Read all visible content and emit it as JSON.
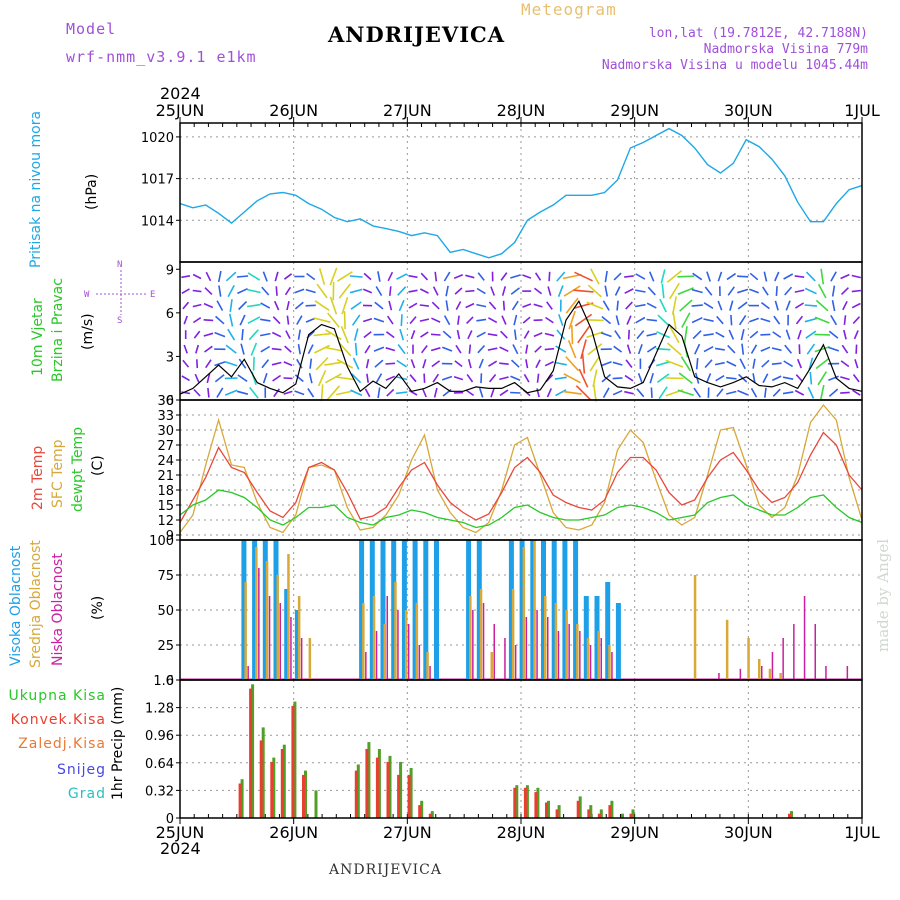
{
  "header": {
    "model_label": "Model",
    "model_name": "wrf-nmm_v3.9.1 e1km",
    "station": "ANDRIJEVICA",
    "meteogram": "Meteogram",
    "lonlat": "lon,lat (19.7812E, 42.7188N)",
    "elevation": "Nadmorska Visina 779m",
    "model_elevation": "Nadmorska Visina u modelu 1045.44m",
    "year": "2024",
    "bottom_station": "ANDRIJEVICA",
    "credit": "made by Angel"
  },
  "colors": {
    "pressure": "#1ea8e6",
    "temp2m": "#e8483c",
    "sfc": "#d8a838",
    "dewpt": "#28c828",
    "high_cloud": "#1ea0e8",
    "mid_cloud": "#d8a838",
    "low_cloud": "#c820a0",
    "total_precip": "#50a028",
    "conv_precip": "#e84030",
    "wind_speed": "#000000",
    "gust": "#e83030"
  },
  "panel_labels": {
    "pressure": "Pritisak na nivou mora",
    "pressure_unit": "(hPa)",
    "wind1": "10m Vjetar",
    "wind2": "Brzina i Pravac",
    "wind_unit": "(m/s)",
    "compass_n": "N",
    "compass_s": "S",
    "compass_w": "W",
    "compass_e": "E",
    "t2m": "2m Temp",
    "tsfc": "SFC Temp",
    "tdew": "dewpt Temp",
    "temp_unit": "(C)",
    "cloud_high": "Visoka Oblacnost",
    "cloud_mid": "Srednja Oblacnost",
    "cloud_low": "Niska Oblacnost",
    "cloud_unit": "(%)",
    "precip_total": "Ukupna Kisa",
    "precip_conv": "Konvek.Kisa",
    "precip_frz": "Zaledj.Kisa",
    "precip_snow": "Snijeg",
    "precip_grad": "Grad",
    "precip_unit": "1hr Precip (mm)"
  },
  "chart_data": [
    {
      "type": "line",
      "panel": "pressure",
      "x_ticks": [
        "25JUN",
        "26JUN",
        "27JUN",
        "28JUN",
        "29JUN",
        "30JUN",
        "1JUL"
      ],
      "ylim": [
        1011,
        1021
      ],
      "y_ticks": [
        "1014",
        "1017",
        "1020"
      ],
      "series": [
        {
          "values": [
            1015.2,
            1014.9,
            1015.1,
            1014.5,
            1013.8,
            1014.6,
            1015.4,
            1015.9,
            1016.0,
            1015.8,
            1015.2,
            1014.8,
            1014.2,
            1013.9,
            1014.1,
            1013.6,
            1013.4,
            1013.2,
            1012.9,
            1013.1,
            1012.9,
            1011.7,
            1011.9,
            1011.6,
            1011.3,
            1011.6,
            1012.4,
            1014.0,
            1014.6,
            1015.1,
            1015.8,
            1015.8,
            1015.8,
            1016.0,
            1016.9,
            1019.2,
            1019.6,
            1020.1,
            1020.6,
            1020.1,
            1019.2,
            1018.0,
            1017.4,
            1018.1,
            1019.8,
            1019.3,
            1018.4,
            1017.2,
            1015.3,
            1013.9,
            1013.9,
            1015.2,
            1016.2,
            1016.5
          ]
        }
      ]
    },
    {
      "type": "line",
      "panel": "wind",
      "ylim": [
        0,
        9.5
      ],
      "y_ticks": [
        "0",
        "3",
        "6",
        "9"
      ],
      "series": [
        {
          "values": [
            0.4,
            0.8,
            1.6,
            2.4,
            1.6,
            2.8,
            1.2,
            0.8,
            0.5,
            1.1,
            4.5,
            5.2,
            4.9,
            2.3,
            0.6,
            1.3,
            0.8,
            1.8,
            0.6,
            0.8,
            1.2,
            0.6,
            0.6,
            0.9,
            0.8,
            0.8,
            1.2,
            0.5,
            0.7,
            2.0,
            5.5,
            6.8,
            4.8,
            1.6,
            0.9,
            0.8,
            1.2,
            3.2,
            5.2,
            4.4,
            1.6,
            1.2,
            0.9,
            1.2,
            1.6,
            1.0,
            0.9,
            1.2,
            0.8,
            2.2,
            3.8,
            1.5,
            0.8,
            0.6
          ]
        }
      ]
    },
    {
      "type": "line",
      "panel": "temperature",
      "ylim": [
        8,
        36
      ],
      "y_ticks": [
        "9",
        "12",
        "15",
        "18",
        "21",
        "24",
        "27",
        "30",
        "33",
        "36"
      ],
      "series": [
        {
          "values": [
            11.5,
            16.0,
            20.5,
            26.5,
            22.5,
            21.5,
            17.5,
            13.8,
            12.5,
            15.5,
            22.5,
            23.5,
            22.0,
            17.5,
            12.2,
            12.8,
            14.5,
            18.5,
            22.0,
            23.5,
            19.0,
            15.5,
            13.5,
            12.0,
            13.2,
            17.5,
            22.5,
            24.5,
            21.5,
            17.0,
            15.5,
            14.5,
            14.0,
            16.0,
            21.5,
            24.5,
            24.5,
            22.0,
            17.5,
            15.0,
            16.0,
            20.5,
            24.0,
            25.5,
            22.0,
            18.0,
            15.5,
            16.5,
            19.5,
            25.0,
            29.5,
            27.0,
            21.0,
            18.0
          ]
        },
        {
          "values": [
            9.5,
            13.0,
            23.0,
            32.0,
            23.0,
            22.5,
            15.5,
            10.5,
            9.5,
            13.0,
            22.5,
            23.0,
            22.0,
            14.5,
            10.0,
            10.5,
            13.0,
            17.0,
            24.0,
            29.0,
            18.0,
            13.5,
            10.5,
            9.5,
            11.5,
            18.0,
            27.0,
            28.5,
            21.0,
            13.5,
            10.5,
            10.0,
            11.0,
            15.5,
            26.0,
            30.0,
            27.5,
            20.0,
            13.0,
            11.0,
            12.5,
            21.0,
            30.0,
            30.5,
            23.0,
            15.0,
            12.5,
            14.5,
            21.0,
            31.5,
            35.0,
            32.0,
            20.5,
            12.0
          ]
        },
        {
          "values": [
            13.0,
            15.0,
            16.0,
            18.0,
            17.5,
            16.5,
            14.5,
            12.0,
            11.0,
            12.5,
            14.5,
            14.5,
            15.0,
            12.5,
            11.5,
            11.0,
            12.5,
            13.0,
            14.0,
            13.5,
            12.5,
            12.0,
            11.5,
            10.5,
            11.0,
            12.5,
            14.5,
            15.0,
            13.5,
            12.5,
            12.0,
            12.0,
            12.5,
            13.0,
            14.5,
            15.0,
            14.5,
            13.5,
            12.0,
            12.5,
            13.0,
            15.5,
            16.5,
            17.0,
            15.0,
            14.0,
            13.0,
            13.0,
            14.5,
            16.5,
            17.0,
            14.5,
            12.5,
            11.5
          ]
        }
      ]
    },
    {
      "type": "bar",
      "panel": "cloud",
      "ylim": [
        0,
        100
      ],
      "y_ticks": [
        "0",
        "25",
        "50",
        "75",
        "100"
      ],
      "series": [
        {
          "values": [
            0,
            0,
            100,
            100,
            100,
            100,
            65,
            50,
            0,
            0,
            0,
            0,
            0,
            100,
            100,
            100,
            100,
            100,
            100,
            100,
            100,
            0,
            0,
            100,
            100,
            0,
            0,
            100,
            100,
            100,
            100,
            100,
            100,
            100,
            60,
            60,
            70,
            55,
            0,
            0,
            0,
            0,
            0,
            0,
            0,
            0,
            0,
            0,
            0,
            0,
            0,
            0,
            0,
            0,
            0,
            0,
            0,
            0,
            0,
            0
          ]
        },
        {
          "values": [
            0,
            0,
            70,
            95,
            85,
            75,
            90,
            60,
            30,
            0,
            0,
            0,
            0,
            55,
            60,
            40,
            70,
            50,
            55,
            20,
            0,
            0,
            0,
            60,
            65,
            20,
            0,
            65,
            95,
            100,
            60,
            55,
            50,
            40,
            30,
            35,
            25,
            0,
            0,
            0,
            0,
            0,
            0,
            0,
            75,
            0,
            0,
            43,
            0,
            30,
            15,
            8,
            5,
            0,
            0,
            0,
            0,
            0,
            0,
            0
          ]
        },
        {
          "values": [
            0,
            0,
            10,
            80,
            60,
            55,
            45,
            30,
            0,
            0,
            0,
            0,
            0,
            20,
            35,
            60,
            50,
            40,
            25,
            10,
            0,
            0,
            0,
            50,
            55,
            40,
            30,
            25,
            45,
            50,
            45,
            35,
            40,
            35,
            25,
            30,
            20,
            0,
            0,
            0,
            0,
            0,
            0,
            0,
            0,
            0,
            5,
            0,
            8,
            0,
            10,
            20,
            30,
            40,
            60,
            40,
            10,
            0,
            10,
            0
          ]
        }
      ]
    },
    {
      "type": "bar",
      "panel": "precip",
      "ylim": [
        0,
        1.6
      ],
      "y_ticks": [
        "0",
        "0.32",
        "0.64",
        "0.96",
        "1.28",
        "1.6"
      ],
      "series": [
        {
          "values": [
            0,
            0.45,
            1.55,
            1.05,
            0.7,
            0.85,
            1.35,
            0.55,
            0.32,
            0,
            0,
            0,
            0.62,
            0.88,
            0.8,
            0.72,
            0.65,
            0.58,
            0.2,
            0.08,
            0,
            0,
            0,
            0,
            0,
            0,
            0,
            0.38,
            0.38,
            0.35,
            0.2,
            0.15,
            0,
            0.25,
            0.15,
            0.1,
            0.2,
            0.05,
            0.1,
            0,
            0,
            0,
            0,
            0,
            0,
            0,
            0,
            0,
            0,
            0,
            0,
            0,
            0,
            0.08,
            0,
            0,
            0,
            0,
            0,
            0
          ]
        },
        {
          "values": [
            0,
            0.4,
            1.5,
            0.9,
            0.65,
            0.8,
            1.3,
            0.5,
            0,
            0,
            0,
            0,
            0.55,
            0.8,
            0.7,
            0.65,
            0.5,
            0.5,
            0.15,
            0.05,
            0,
            0,
            0,
            0,
            0,
            0,
            0,
            0.35,
            0.35,
            0.3,
            0.18,
            0.1,
            0,
            0.2,
            0.1,
            0.05,
            0.15,
            0,
            0.05,
            0,
            0,
            0,
            0,
            0,
            0,
            0,
            0,
            0,
            0,
            0,
            0,
            0,
            0,
            0.05,
            0,
            0,
            0,
            0,
            0,
            0
          ]
        }
      ]
    }
  ]
}
